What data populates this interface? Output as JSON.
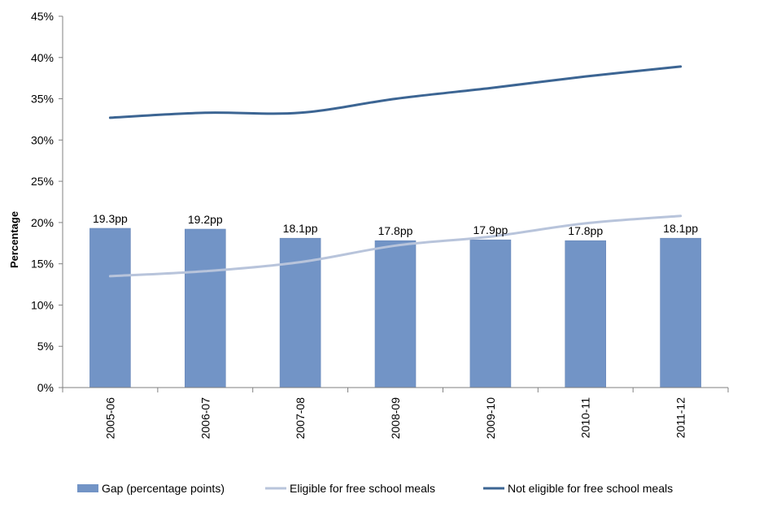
{
  "chart_data": {
    "type": "bar",
    "title": "",
    "xlabel": "",
    "ylabel": "Percentage",
    "ylim": [
      0,
      45
    ],
    "y_ticks": [
      0,
      5,
      10,
      15,
      20,
      25,
      30,
      35,
      40,
      45
    ],
    "y_tick_format": "%",
    "grid": false,
    "legend_position": "bottom",
    "categories": [
      "2005-06",
      "2006-07",
      "2007-08",
      "2008-09",
      "2009-10",
      "2010-11",
      "2011-12"
    ],
    "series": [
      {
        "name": "Gap (percentage points)",
        "type": "bar",
        "color": "#7294c6",
        "values": [
          19.3,
          19.2,
          18.1,
          17.8,
          17.9,
          17.8,
          18.1
        ],
        "data_labels": [
          "19.3pp",
          "19.2pp",
          "18.1pp",
          "17.8pp",
          "17.9pp",
          "17.8pp",
          "18.1pp"
        ]
      },
      {
        "name": "Eligible for free school meals",
        "type": "line",
        "color": "#b8c4db",
        "values": [
          13.5,
          14.1,
          15.2,
          17.2,
          18.3,
          19.9,
          20.8
        ]
      },
      {
        "name": "Not eligible for free school meals",
        "type": "line",
        "color": "#3c6593",
        "values": [
          32.7,
          33.3,
          33.3,
          35.0,
          36.3,
          37.7,
          38.9
        ]
      }
    ]
  }
}
